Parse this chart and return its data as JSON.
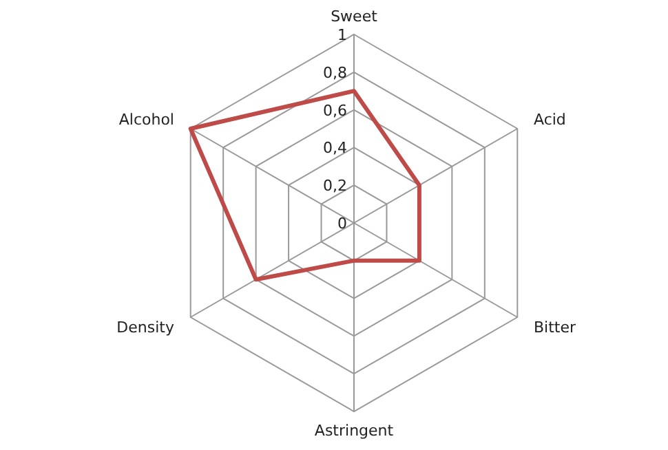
{
  "chart_data": {
    "type": "radar",
    "categories": [
      "Sweet",
      "Acid",
      "Bitter",
      "Astringent",
      "Density",
      "Alcohol"
    ],
    "series": [
      {
        "color": "#be4b48",
        "values": [
          0.7,
          0.4,
          0.4,
          0.2,
          0.6,
          1
        ]
      }
    ],
    "ylim": [
      0,
      1
    ],
    "yticks": [
      0,
      {
        "value": 0.2,
        "label": "0,2"
      },
      {
        "value": 0.4,
        "label": "0,4"
      },
      {
        "value": 0.6,
        "label": "0,6"
      },
      {
        "value": 0.8,
        "label": "0,8"
      },
      1
    ],
    "grid": true,
    "legend": false,
    "marker": "none",
    "line_style": "solid"
  }
}
